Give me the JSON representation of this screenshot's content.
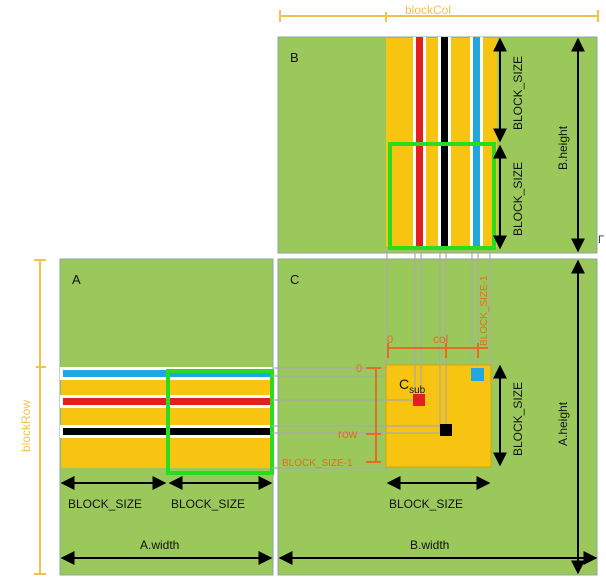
{
  "labels": {
    "matrix_a": "A",
    "matrix_b": "B",
    "matrix_c": "C",
    "block_col": "blockCol",
    "block_row": "blockRow",
    "b_height": "B.height",
    "a_height": "A.height",
    "a_width": "A.width",
    "b_width": "B.width",
    "block_size": "BLOCK_SIZE",
    "block_size_minus_1": "BLOCK_SIZE-1",
    "zero": "0",
    "col": "col",
    "row": "row",
    "c_sub_main": "C",
    "c_sub_sub": "sub",
    "stray_mark": "Γ"
  },
  "colors": {
    "matrix_green": "#9bc85b",
    "block_yellow": "#f7c412",
    "highlight_green": "#2bdb1e",
    "annotation_orange": "#e36d21",
    "bracket_yellow": "#f2c14e",
    "row_blue": "#22a6df",
    "row_red": "#e31e1e",
    "row_black": "#000000",
    "text_dark": "#111111"
  }
}
